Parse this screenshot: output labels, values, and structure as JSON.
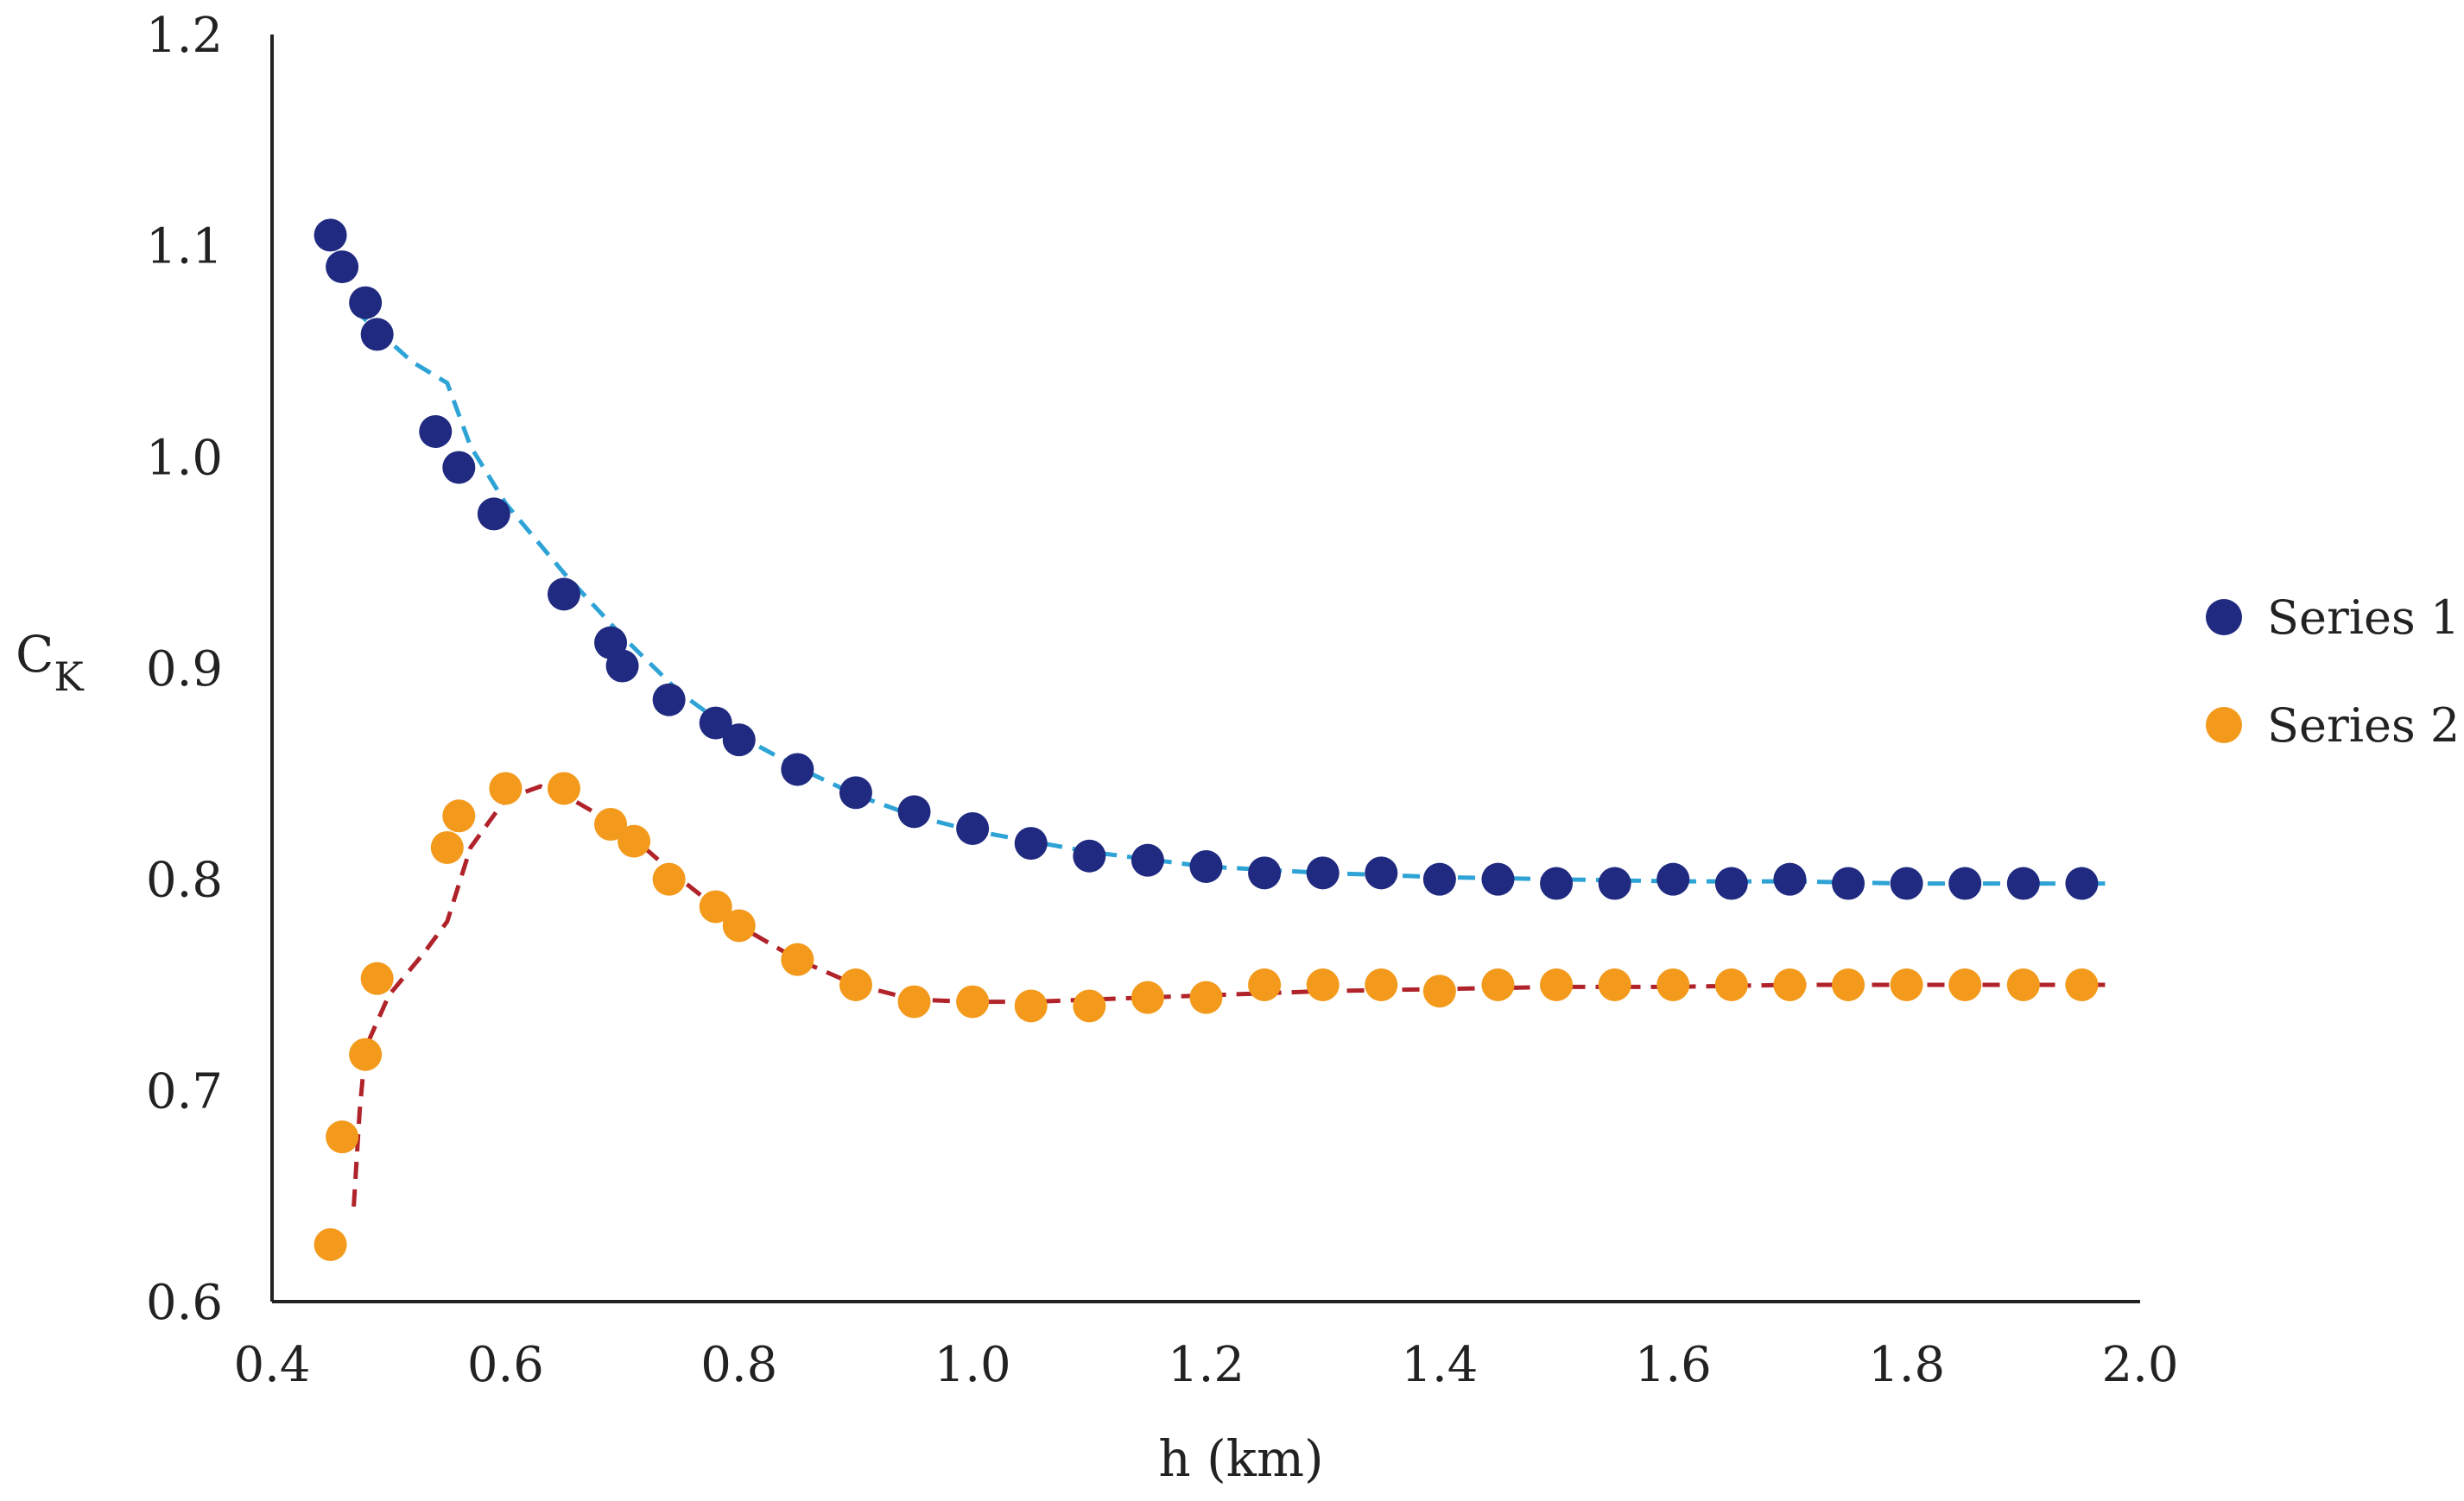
{
  "chart_data": {
    "type": "scatter",
    "title": "",
    "xlabel": "h (km)",
    "ylabel": "C",
    "ylabel_subscript": "K",
    "xlim": [
      0.4,
      2.0
    ],
    "ylim": [
      0.6,
      1.2
    ],
    "xticks": [
      "0.4",
      "0.6",
      "0.8",
      "1.0",
      "1.2",
      "1.4",
      "1.6",
      "1.8",
      "2.0"
    ],
    "yticks": [
      "0.6",
      "0.7",
      "0.8",
      "0.9",
      "1.0",
      "1.1",
      "1.2"
    ],
    "grid": false,
    "legend_position": "right",
    "series": [
      {
        "name": "Series 1",
        "color": "#1f2a80",
        "trend_color": "#2ea3d6",
        "x": [
          0.45,
          0.46,
          0.48,
          0.49,
          0.54,
          0.56,
          0.59,
          0.65,
          0.69,
          0.7,
          0.74,
          0.78,
          0.8,
          0.85,
          0.9,
          0.95,
          1.0,
          1.05,
          1.1,
          1.15,
          1.2,
          1.25,
          1.3,
          1.35,
          1.4,
          1.45,
          1.5,
          1.55,
          1.6,
          1.65,
          1.7,
          1.75,
          1.8,
          1.85,
          1.9,
          1.95
        ],
        "y": [
          1.105,
          1.09,
          1.073,
          1.058,
          1.012,
          0.995,
          0.973,
          0.935,
          0.912,
          0.901,
          0.885,
          0.874,
          0.866,
          0.852,
          0.841,
          0.832,
          0.824,
          0.817,
          0.811,
          0.809,
          0.806,
          0.803,
          0.803,
          0.803,
          0.8,
          0.8,
          0.798,
          0.798,
          0.8,
          0.798,
          0.8,
          0.798,
          0.798,
          0.798,
          0.798,
          0.798
        ],
        "trend_x": [
          0.47,
          0.52,
          0.55,
          0.57,
          0.6,
          0.65,
          0.7,
          0.75,
          0.8,
          0.85,
          0.9,
          0.95,
          1.0,
          1.1,
          1.2,
          1.3,
          1.4,
          1.5,
          1.6,
          1.7,
          1.8,
          1.9,
          1.97
        ],
        "trend_y": [
          1.07,
          1.045,
          1.035,
          1.005,
          0.978,
          0.945,
          0.915,
          0.888,
          0.868,
          0.853,
          0.84,
          0.83,
          0.823,
          0.813,
          0.806,
          0.803,
          0.801,
          0.8,
          0.799,
          0.799,
          0.798,
          0.798,
          0.798
        ]
      },
      {
        "name": "Series 2",
        "color": "#f39a1c",
        "trend_color": "#b0232a",
        "x": [
          0.45,
          0.46,
          0.48,
          0.49,
          0.55,
          0.56,
          0.6,
          0.65,
          0.69,
          0.71,
          0.74,
          0.78,
          0.8,
          0.85,
          0.9,
          0.95,
          1.0,
          1.05,
          1.1,
          1.15,
          1.2,
          1.25,
          1.3,
          1.35,
          1.4,
          1.45,
          1.5,
          1.55,
          1.6,
          1.65,
          1.7,
          1.75,
          1.8,
          1.85,
          1.9,
          1.95
        ],
        "y": [
          0.627,
          0.678,
          0.717,
          0.753,
          0.815,
          0.83,
          0.843,
          0.843,
          0.826,
          0.818,
          0.8,
          0.787,
          0.778,
          0.762,
          0.75,
          0.742,
          0.742,
          0.74,
          0.74,
          0.744,
          0.744,
          0.75,
          0.75,
          0.75,
          0.747,
          0.75,
          0.75,
          0.75,
          0.75,
          0.75,
          0.75,
          0.75,
          0.75,
          0.75,
          0.75,
          0.75
        ],
        "trend_x": [
          0.47,
          0.475,
          0.48,
          0.5,
          0.53,
          0.55,
          0.57,
          0.6,
          0.63,
          0.65,
          0.7,
          0.75,
          0.8,
          0.85,
          0.9,
          0.95,
          1.0,
          1.05,
          1.1,
          1.2,
          1.3,
          1.4,
          1.5,
          1.6,
          1.7,
          1.8,
          1.9,
          1.97
        ],
        "trend_y": [
          0.645,
          0.69,
          0.72,
          0.745,
          0.765,
          0.78,
          0.815,
          0.838,
          0.844,
          0.84,
          0.824,
          0.8,
          0.778,
          0.762,
          0.75,
          0.743,
          0.742,
          0.742,
          0.743,
          0.745,
          0.747,
          0.748,
          0.749,
          0.749,
          0.75,
          0.75,
          0.75,
          0.75
        ]
      }
    ]
  }
}
